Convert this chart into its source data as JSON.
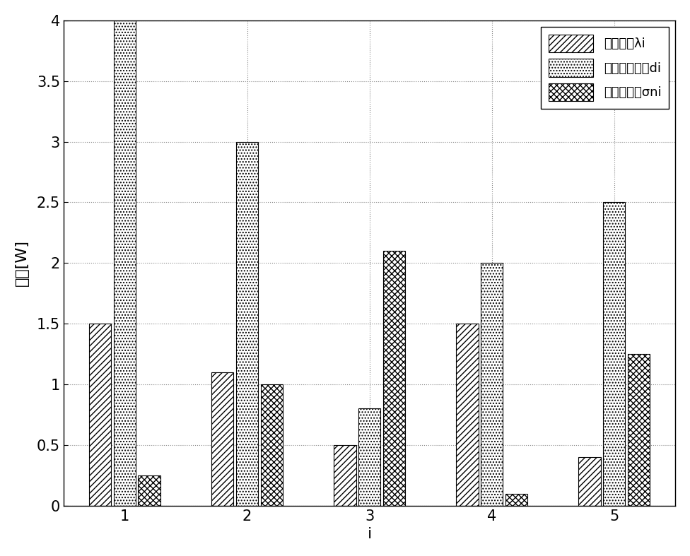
{
  "categories": [
    1,
    2,
    3,
    4,
    5
  ],
  "series1_label": "目标频谱λi",
  "series2_label": "雷达信号频谱di",
  "series3_label": "噪声功率谱σni",
  "series1_values": [
    1.5,
    1.1,
    0.5,
    1.5,
    0.4
  ],
  "series2_values": [
    4.0,
    3.0,
    0.8,
    2.0,
    2.5
  ],
  "series3_values": [
    0.25,
    1.0,
    2.1,
    0.1,
    1.25
  ],
  "xlabel": "i",
  "ylabel": "功率[W]",
  "ylim": [
    0,
    4
  ],
  "yticks": [
    0,
    0.5,
    1.0,
    1.5,
    2.0,
    2.5,
    3.0,
    3.5,
    4.0
  ],
  "bar_width": 0.18,
  "bar_gap": 0.02,
  "background_color": "#ffffff",
  "grid_color": "#888888"
}
